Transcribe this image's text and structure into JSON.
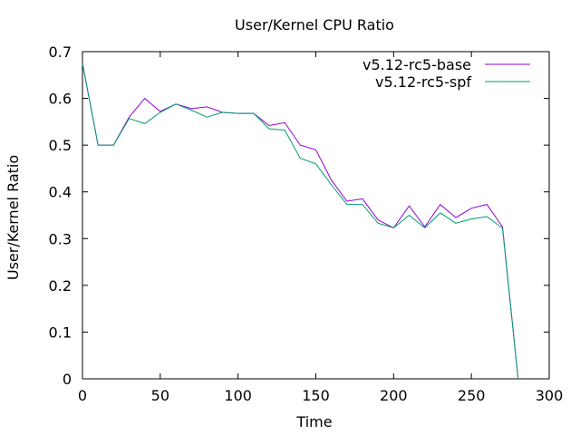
{
  "chart_data": {
    "type": "line",
    "title": "User/Kernel CPU Ratio",
    "xlabel": "Time",
    "ylabel": "User/Kernel Ratio",
    "xlim": [
      0,
      300
    ],
    "ylim": [
      0,
      0.7
    ],
    "xticks": [
      0,
      50,
      100,
      150,
      200,
      250,
      300
    ],
    "yticks": [
      0,
      0.1,
      0.2,
      0.3,
      0.4,
      0.5,
      0.6,
      0.7
    ],
    "ytick_labels": [
      "0",
      "0.1",
      "0.2",
      "0.3",
      "0.4",
      "0.5",
      "0.6",
      "0.7"
    ],
    "grid": false,
    "legend_position": "top-right",
    "series": [
      {
        "name": "v5.12-rc5-base",
        "color": "#9400d3",
        "x": [
          0,
          10,
          20,
          30,
          40,
          50,
          60,
          70,
          80,
          90,
          100,
          110,
          120,
          130,
          140,
          150,
          160,
          170,
          180,
          190,
          200,
          210,
          220,
          230,
          240,
          250,
          260,
          270,
          280
        ],
        "y": [
          0.675,
          0.5,
          0.5,
          0.56,
          0.6,
          0.572,
          0.588,
          0.578,
          0.582,
          0.57,
          0.568,
          0.568,
          0.542,
          0.548,
          0.5,
          0.49,
          0.425,
          0.38,
          0.385,
          0.34,
          0.323,
          0.37,
          0.325,
          0.373,
          0.345,
          0.365,
          0.373,
          0.325,
          0.0
        ]
      },
      {
        "name": "v5.12-rc5-spf",
        "color": "#009e73",
        "x": [
          0,
          10,
          20,
          30,
          40,
          50,
          60,
          70,
          80,
          90,
          100,
          110,
          120,
          130,
          140,
          150,
          160,
          170,
          180,
          190,
          200,
          210,
          220,
          230,
          240,
          250,
          260,
          270,
          280
        ],
        "y": [
          0.675,
          0.5,
          0.5,
          0.557,
          0.546,
          0.57,
          0.588,
          0.575,
          0.56,
          0.57,
          0.568,
          0.568,
          0.535,
          0.532,
          0.472,
          0.46,
          0.415,
          0.373,
          0.373,
          0.333,
          0.323,
          0.35,
          0.323,
          0.355,
          0.333,
          0.342,
          0.347,
          0.322,
          0.0
        ]
      }
    ]
  }
}
